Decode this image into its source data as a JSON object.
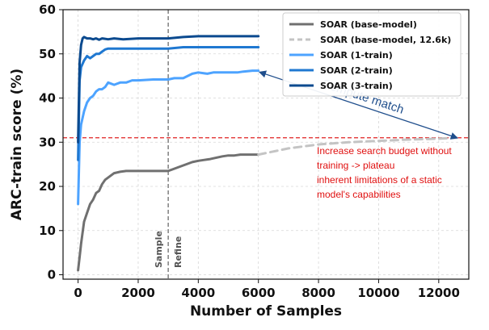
{
  "chart_data": {
    "type": "line",
    "title": "",
    "xlabel": "Number of Samples",
    "ylabel": "ARC-train score (%)",
    "xlim": [
      -500,
      13000
    ],
    "ylim": [
      -1,
      60
    ],
    "xticks": [
      0,
      2000,
      4000,
      6000,
      8000,
      10000,
      12000
    ],
    "xtick_labels": [
      "0",
      "2000",
      "4000",
      "6000",
      "8000",
      "10000",
      "12000"
    ],
    "yticks": [
      0,
      10,
      20,
      30,
      40,
      50,
      60
    ],
    "ytick_labels": [
      "0",
      "10",
      "20",
      "30",
      "40",
      "50",
      "60"
    ],
    "grid": true,
    "legend_position": "top-right",
    "series": [
      {
        "name": "SOAR (base-model)",
        "color": "#707070",
        "dash": "solid",
        "x": [
          0,
          50,
          100,
          200,
          300,
          400,
          500,
          600,
          700,
          800,
          900,
          1000,
          1100,
          1200,
          1400,
          1600,
          1800,
          2000,
          2500,
          2900,
          3000,
          3200,
          3400,
          3600,
          3800,
          4000,
          4200,
          4400,
          4600,
          4800,
          5000,
          5200,
          5400,
          5600,
          5800,
          6000
        ],
        "y": [
          1,
          4,
          7,
          12,
          14,
          16,
          17,
          18.5,
          19,
          20.5,
          21.5,
          22,
          22.5,
          23,
          23.3,
          23.5,
          23.5,
          23.5,
          23.5,
          23.5,
          23.5,
          24,
          24.5,
          25,
          25.5,
          25.8,
          26,
          26.2,
          26.5,
          26.8,
          27,
          27,
          27.2,
          27.2,
          27.2,
          27.2
        ]
      },
      {
        "name": "SOAR (base-model, 12.6k)",
        "color": "#c4c4c4",
        "dash": "dashed",
        "x": [
          6000,
          7000,
          8000,
          9000,
          10000,
          11000,
          12000,
          12600
        ],
        "y": [
          27.2,
          28.6,
          29.5,
          30,
          30.3,
          30.6,
          30.8,
          31
        ]
      },
      {
        "name": "SOAR (1-train)",
        "color": "#4da3ff",
        "dash": "solid",
        "x": [
          0,
          50,
          100,
          200,
          300,
          400,
          500,
          600,
          700,
          800,
          900,
          1000,
          1200,
          1400,
          1600,
          1800,
          2000,
          2500,
          3000,
          3200,
          3500,
          3800,
          4000,
          4300,
          4500,
          4700,
          5000,
          5300,
          5500,
          5800,
          6000
        ],
        "y": [
          16,
          30,
          34,
          37,
          39,
          40,
          40.5,
          41.5,
          42,
          42,
          42.5,
          43.5,
          43,
          43.5,
          43.5,
          44,
          44,
          44.2,
          44.2,
          44.5,
          44.5,
          45.5,
          45.8,
          45.5,
          45.8,
          45.8,
          45.8,
          45.8,
          46,
          46.2,
          46.2
        ]
      },
      {
        "name": "SOAR (2-train)",
        "color": "#1f78d1",
        "dash": "solid",
        "x": [
          0,
          50,
          100,
          200,
          300,
          400,
          500,
          600,
          700,
          800,
          900,
          1000,
          1500,
          2000,
          2500,
          3000,
          3500,
          4000,
          4500,
          5000,
          5500,
          6000
        ],
        "y": [
          26,
          44,
          47,
          48.5,
          49.5,
          49,
          49.5,
          50,
          50,
          50.5,
          51,
          51.2,
          51.2,
          51.2,
          51.2,
          51.2,
          51.5,
          51.5,
          51.5,
          51.5,
          51.5,
          51.5
        ]
      },
      {
        "name": "SOAR (3-train)",
        "color": "#0b4a8f",
        "dash": "solid",
        "x": [
          0,
          50,
          100,
          150,
          200,
          300,
          400,
          500,
          600,
          700,
          800,
          1000,
          1200,
          1500,
          2000,
          2500,
          3000,
          3500,
          4000,
          4500,
          5000,
          5500,
          6000
        ],
        "y": [
          30,
          48,
          52,
          53.5,
          53.8,
          53.5,
          53.5,
          53.3,
          53.5,
          53.2,
          53.5,
          53.3,
          53.5,
          53.3,
          53.5,
          53.5,
          53.5,
          53.8,
          54,
          54,
          54,
          54,
          54
        ]
      }
    ],
    "reference_lines": {
      "horizontal": {
        "y": 31,
        "color": "#e02020",
        "dash": "dashed"
      },
      "vertical": {
        "x": 3000,
        "color": "#808080",
        "dash": "dashed"
      }
    },
    "annotations": {
      "vline_left": "Sample",
      "vline_right": "Refine",
      "compute_match": "Compute match",
      "compute_match_color": "#1f4e8c",
      "red_note_lines": [
        "Increase search budget without",
        "training -> plateau",
        "inherent limitations of a static",
        "model's capabilities"
      ],
      "red_note_color": "#e01010",
      "arrow_from": {
        "x": 12600,
        "y": 31
      },
      "arrow_to": {
        "x": 6000,
        "y": 46.2
      }
    }
  }
}
